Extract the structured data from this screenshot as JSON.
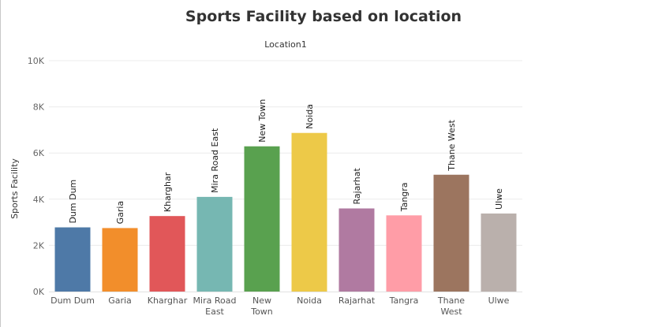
{
  "chart_data": {
    "type": "bar",
    "title": "Sports Facility based on location",
    "header": "Location1",
    "ylabel": "Sports Facility",
    "xlabel": "",
    "ylim": [
      0,
      10000
    ],
    "yticks": [
      0,
      2000,
      4000,
      6000,
      8000,
      10000
    ],
    "ytick_labels": [
      "0K",
      "2K",
      "4K",
      "6K",
      "8K",
      "10K"
    ],
    "grid": true,
    "categories": [
      "Dum Dum",
      "Garia",
      "Kharghar",
      "Mira Road East",
      "New Town",
      "Noida",
      "Rajarhat",
      "Tangra",
      "Thane West",
      "Ulwe"
    ],
    "category_axis_lines": [
      [
        "Dum Dum"
      ],
      [
        "Garia"
      ],
      [
        "Kharghar"
      ],
      [
        "Mira Road",
        "East"
      ],
      [
        "New",
        "Town"
      ],
      [
        "Noida"
      ],
      [
        "Rajarhat"
      ],
      [
        "Tangra"
      ],
      [
        "Thane",
        "West"
      ],
      [
        "Ulwe"
      ]
    ],
    "values": [
      2780,
      2750,
      3270,
      4100,
      6290,
      6870,
      3600,
      3300,
      5060,
      3380
    ],
    "colors": [
      "#4e79a7",
      "#f28e2b",
      "#e15759",
      "#76b7b2",
      "#59a14f",
      "#edc948",
      "#b07aa1",
      "#ff9da7",
      "#9c755f",
      "#bab0ac"
    ]
  }
}
